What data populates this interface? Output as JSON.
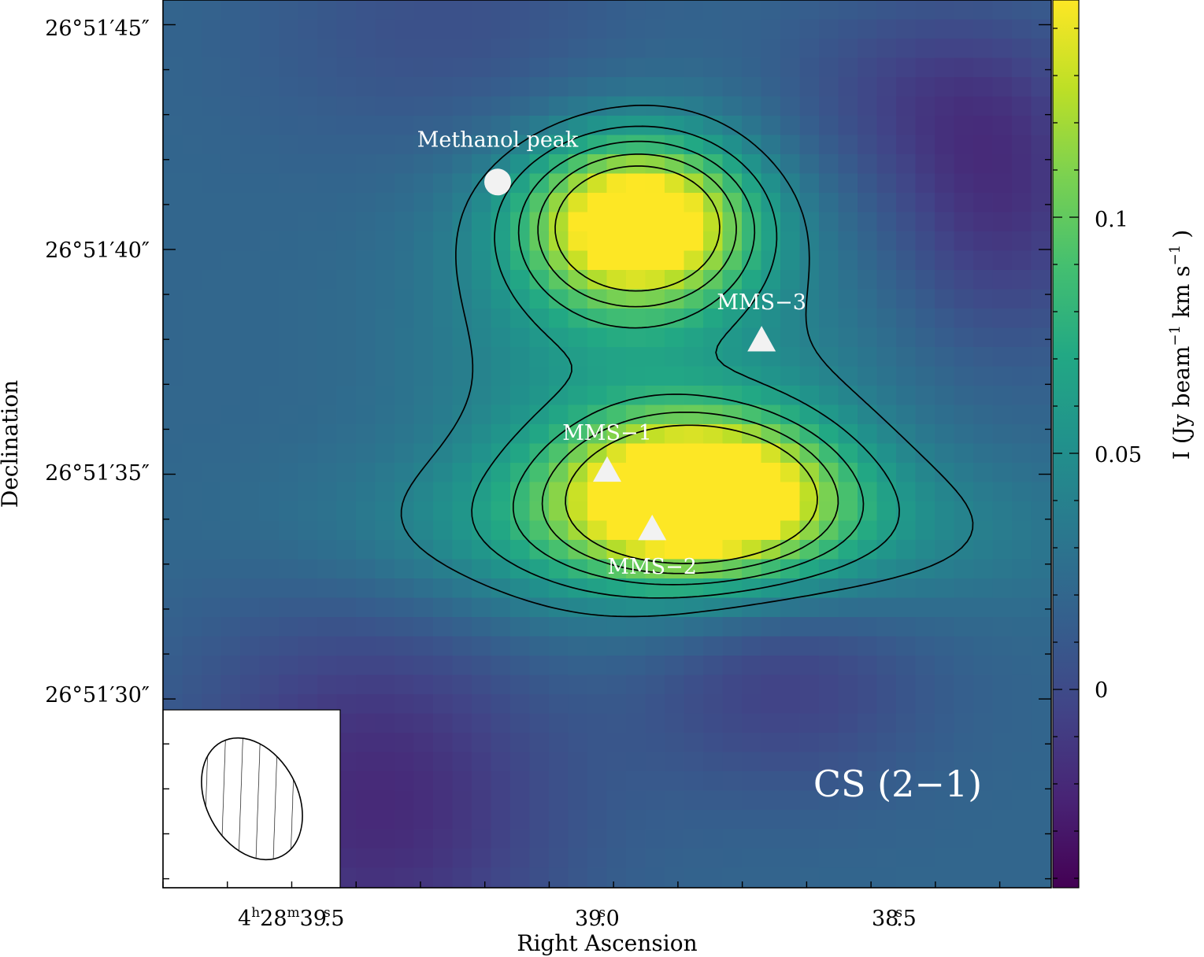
{
  "chart_data": {
    "type": "heatmap",
    "title": "CS (2−1)",
    "xlabel": "Right Ascension",
    "ylabel": "Declination",
    "x_ticks": [
      {
        "ra_s": 39.5,
        "label_main": "4",
        "sup_h": "h",
        "label_m": "28",
        "sup_m": "m",
        "label_s": "39",
        "sup_s": "s",
        "label_frac": ".5"
      },
      {
        "ra_s": 39.0,
        "label_main": "39",
        "sup_s": "s",
        "label_frac": ".0"
      },
      {
        "ra_s": 38.5,
        "label_main": "38",
        "sup_s": "s",
        "label_frac": ".5"
      }
    ],
    "y_ticks": [
      {
        "dec_arcsec": 45,
        "label": "26°51′45″"
      },
      {
        "dec_arcsec": 40,
        "label": "26°51′40″"
      },
      {
        "dec_arcsec": 35,
        "label": "26°51′35″"
      },
      {
        "dec_arcsec": 30,
        "label": "26°51′30″"
      }
    ],
    "x_range_ra_s": [
      39.65,
      38.27
    ],
    "y_range_dec_arcsec": [
      25.8,
      45.55
    ],
    "colorbar": {
      "label_main": "I (Jy beam",
      "label_exp1": "−1",
      "label_mid": " km s",
      "label_exp2": "−1",
      "label_end": ")",
      "range": [
        -0.042,
        0.146
      ],
      "ticks": [
        {
          "value": 0,
          "label": "0"
        },
        {
          "value": 0.05,
          "label": "0.05"
        },
        {
          "value": 0.1,
          "label": "0.1"
        }
      ],
      "colormap": "viridis"
    },
    "emission_components": [
      {
        "ra_s": 38.91,
        "dec_arcsec": 40.6,
        "peak": 0.142,
        "sigma_ra_arcsec": 1.6,
        "sigma_dec_arcsec": 1.25
      },
      {
        "ra_s": 38.82,
        "dec_arcsec": 34.6,
        "peak": 0.142,
        "sigma_ra_arcsec": 1.85,
        "sigma_dec_arcsec": 1.15
      },
      {
        "ra_s": 38.85,
        "dec_arcsec": 33.7,
        "peak": 0.045,
        "sigma_ra_arcsec": 4.6,
        "sigma_dec_arcsec": 1.3
      },
      {
        "ra_s": 38.96,
        "dec_arcsec": 37.8,
        "peak": 0.034,
        "sigma_ra_arcsec": 2.6,
        "sigma_dec_arcsec": 3.6
      },
      {
        "ra_s": 38.66,
        "dec_arcsec": 36.2,
        "peak": 0.012,
        "sigma_ra_arcsec": 2.0,
        "sigma_dec_arcsec": 2.5
      },
      {
        "ra_s": 39.32,
        "dec_arcsec": 27.7,
        "peak": -0.04,
        "sigma_ra_arcsec": 2.8,
        "sigma_dec_arcsec": 3.2
      },
      {
        "ra_s": 38.69,
        "dec_arcsec": 30.5,
        "peak": -0.028,
        "sigma_ra_arcsec": 2.2,
        "sigma_dec_arcsec": 1.8
      },
      {
        "ra_s": 38.35,
        "dec_arcsec": 40.9,
        "peak": -0.032,
        "sigma_ra_arcsec": 1.6,
        "sigma_dec_arcsec": 2.2
      },
      {
        "ra_s": 38.47,
        "dec_arcsec": 43.5,
        "peak": -0.022,
        "sigma_ra_arcsec": 2.2,
        "sigma_dec_arcsec": 1.6
      },
      {
        "ra_s": 39.18,
        "dec_arcsec": 44.8,
        "peak": -0.018,
        "sigma_ra_arcsec": 3.0,
        "sigma_dec_arcsec": 2.0
      }
    ],
    "background_level": 0.02,
    "contour_levels": [
      0.04,
      0.06,
      0.08,
      0.1,
      0.12
    ],
    "markers": [
      {
        "label": "Methanol peak",
        "shape": "circle",
        "ra_s": 39.13,
        "dec_arcsec": 41.5
      },
      {
        "label": "MMS−1",
        "shape": "triangle",
        "ra_s": 38.96,
        "dec_arcsec": 35.1
      },
      {
        "label": "MMS−2",
        "shape": "triangle",
        "ra_s": 38.89,
        "dec_arcsec": 33.8
      },
      {
        "label": "MMS−3",
        "shape": "triangle",
        "ra_s": 38.72,
        "dec_arcsec": 38.0
      }
    ],
    "beam": {
      "major_arcsec": 2.8,
      "minor_arcsec": 1.9,
      "pa_deg": -28
    }
  }
}
